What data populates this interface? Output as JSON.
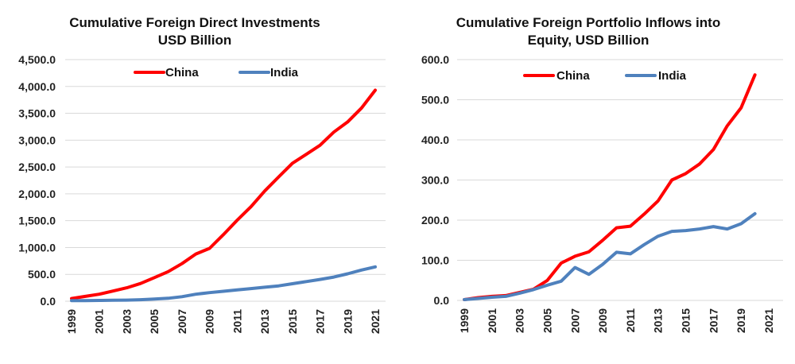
{
  "chart_data": [
    {
      "type": "line",
      "title": "Cumulative Foreign Direct Investments",
      "subtitle": "USD Billion",
      "xlabel": "",
      "ylabel": "",
      "ylim": [
        0,
        4500
      ],
      "yticks": [
        "0.0",
        "500.0",
        "1,000.0",
        "1,500.0",
        "2,000.0",
        "2,500.0",
        "3,000.0",
        "3,500.0",
        "4,000.0",
        "4,500.0"
      ],
      "xticks": [
        "1999",
        "2001",
        "2003",
        "2005",
        "2007",
        "2009",
        "2011",
        "2013",
        "2015",
        "2017",
        "2019",
        "2021"
      ],
      "x": [
        1999,
        2000,
        2001,
        2002,
        2003,
        2004,
        2005,
        2006,
        2007,
        2008,
        2009,
        2010,
        2011,
        2012,
        2013,
        2014,
        2015,
        2016,
        2017,
        2018,
        2019,
        2020,
        2021
      ],
      "legend_position": "top",
      "grid": true,
      "series": [
        {
          "name": "China",
          "color": "#ff0000",
          "values": [
            50,
            90,
            130,
            190,
            250,
            330,
            440,
            550,
            700,
            880,
            985,
            1240,
            1510,
            1760,
            2055,
            2315,
            2570,
            2735,
            2905,
            3150,
            3340,
            3595,
            3930
          ]
        },
        {
          "name": "India",
          "color": "#4f81bd",
          "values": [
            10,
            12,
            15,
            18,
            20,
            28,
            40,
            55,
            85,
            130,
            160,
            185,
            210,
            235,
            260,
            285,
            325,
            365,
            405,
            450,
            510,
            580,
            640
          ]
        }
      ]
    },
    {
      "type": "line",
      "title": "Cumulative Foreign Portfolio Inflows into",
      "subtitle": "Equity, USD Billion",
      "xlabel": "",
      "ylabel": "",
      "ylim": [
        0,
        600
      ],
      "yticks": [
        "0.0",
        "100.0",
        "200.0",
        "300.0",
        "400.0",
        "500.0",
        "600.0"
      ],
      "xticks": [
        "1999",
        "2001",
        "2003",
        "2005",
        "2007",
        "2009",
        "2011",
        "2013",
        "2015",
        "2017",
        "2019",
        "2021"
      ],
      "x": [
        1999,
        2000,
        2001,
        2002,
        2003,
        2004,
        2005,
        2006,
        2007,
        2008,
        2009,
        2010,
        2011,
        2012,
        2013,
        2014,
        2015,
        2016,
        2017,
        2018,
        2019,
        2020
      ],
      "legend_position": "top",
      "grid": true,
      "series": [
        {
          "name": "China",
          "color": "#ff0000",
          "values": [
            2,
            7,
            10,
            12,
            20,
            28,
            50,
            93,
            110,
            121,
            150,
            181,
            185,
            215,
            248,
            300,
            316,
            340,
            376,
            435,
            480,
            562
          ]
        },
        {
          "name": "India",
          "color": "#4f81bd",
          "values": [
            2,
            5,
            8,
            10,
            18,
            27,
            38,
            48,
            82,
            65,
            90,
            120,
            116,
            139,
            160,
            172,
            174,
            178,
            184,
            178,
            191,
            216
          ]
        }
      ]
    }
  ]
}
